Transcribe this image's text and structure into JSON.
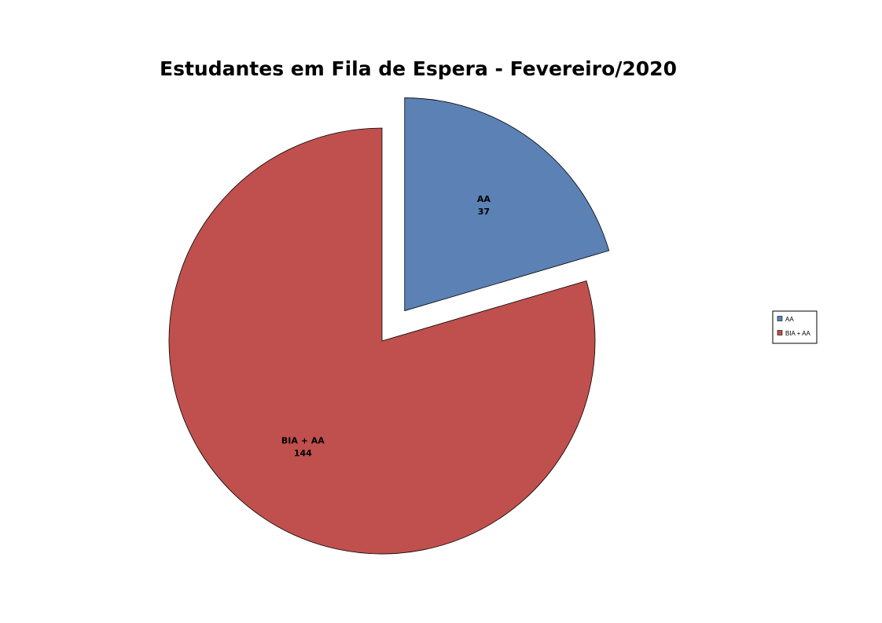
{
  "chart_data": {
    "type": "pie",
    "title": "Estudantes em Fila de Espera - Fevereiro/2020",
    "categories": [
      "AA",
      "BIA + AA"
    ],
    "values": [
      37,
      144
    ],
    "colors": [
      "#5B81B5",
      "#C0504D"
    ],
    "exploded": [
      "AA"
    ],
    "data_labels": [
      "AA\n37",
      "BIA + AA\n144"
    ],
    "legend": {
      "placement": "right",
      "entries": [
        "AA",
        "BIA + AA"
      ]
    }
  }
}
